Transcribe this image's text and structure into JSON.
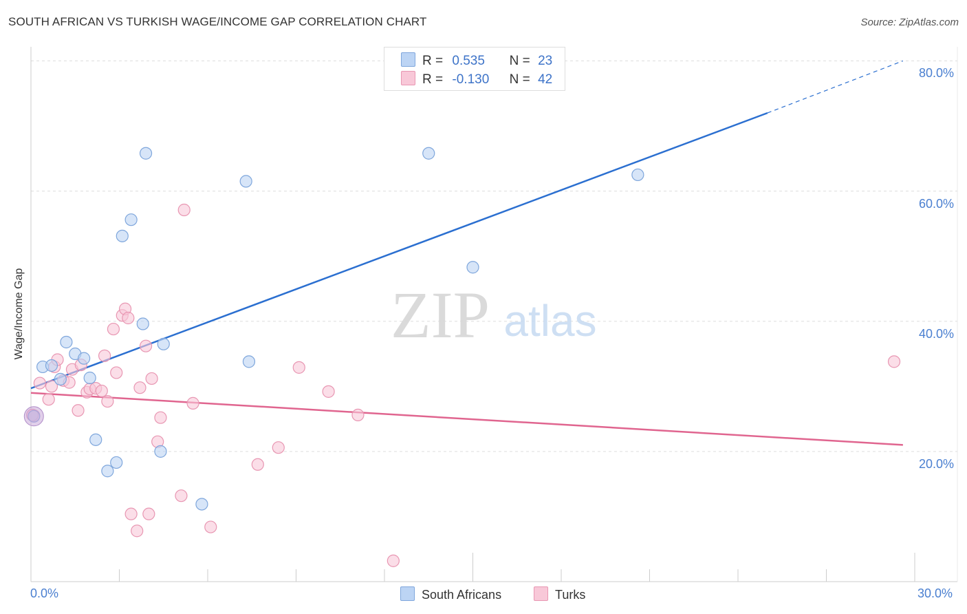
{
  "title": "SOUTH AFRICAN VS TURKISH WAGE/INCOME GAP CORRELATION CHART",
  "source": "Source: ZipAtlas.com",
  "watermark": {
    "zip": "ZIP",
    "atlas": "atlas"
  },
  "colors": {
    "blue_fill": "#bcd4f4",
    "blue_stroke": "#7ea6dc",
    "blue_line": "#2b6fd0",
    "pink_fill": "#f8c8d8",
    "pink_stroke": "#e896b2",
    "pink_line": "#e0658f",
    "axis_label": "#4a7fd0",
    "grid": "#dddddd"
  },
  "legend": {
    "rows": [
      {
        "r_label": "R =",
        "r_value": "0.535",
        "n_label": "N =",
        "n_value": "23",
        "series": "blue"
      },
      {
        "r_label": "R =",
        "r_value": "-0.130",
        "n_label": "N =",
        "n_value": "42",
        "series": "pink"
      }
    ]
  },
  "bottom_legend": [
    {
      "label": "South Africans",
      "series": "blue"
    },
    {
      "label": "Turks",
      "series": "pink"
    }
  ],
  "chart_data": {
    "type": "scatter",
    "title": "SOUTH AFRICAN VS TURKISH WAGE/INCOME GAP CORRELATION CHART",
    "xlabel": "",
    "ylabel": "Wage/Income Gap",
    "xlim": [
      0,
      30
    ],
    "ylim": [
      0,
      81
    ],
    "x_tick_labels": [
      "0.0%",
      "30.0%"
    ],
    "y_ticks": [
      20,
      40,
      60,
      80
    ],
    "y_tick_labels": [
      "20.0%",
      "40.0%",
      "60.0%",
      "80.0%"
    ],
    "grid": true,
    "series": [
      {
        "name": "South Africans",
        "color": "#7ea6dc",
        "r": 0.535,
        "n": 23,
        "trend": {
          "x0": 0,
          "y0": 29.7,
          "x1": 25.0,
          "y1": 72.0,
          "dashed_to_x": 29.6,
          "dashed_to_y": 80.0
        },
        "points": [
          [
            0.1,
            25.4
          ],
          [
            0.4,
            33.0
          ],
          [
            0.7,
            33.2
          ],
          [
            1.0,
            31.1
          ],
          [
            1.2,
            36.8
          ],
          [
            1.5,
            35.0
          ],
          [
            1.8,
            34.3
          ],
          [
            2.0,
            31.3
          ],
          [
            2.2,
            21.8
          ],
          [
            2.6,
            17.0
          ],
          [
            2.9,
            18.3
          ],
          [
            3.1,
            53.1
          ],
          [
            3.4,
            55.6
          ],
          [
            3.8,
            39.6
          ],
          [
            3.9,
            65.8
          ],
          [
            4.4,
            20.0
          ],
          [
            4.5,
            36.5
          ],
          [
            5.8,
            11.9
          ],
          [
            7.3,
            61.5
          ],
          [
            7.4,
            33.8
          ],
          [
            13.5,
            65.8
          ],
          [
            15.0,
            48.3
          ],
          [
            20.6,
            62.5
          ]
        ]
      },
      {
        "name": "Turks",
        "color": "#e896b2",
        "r": -0.13,
        "n": 42,
        "trend": {
          "x0": 0,
          "y0": 29.0,
          "x1": 29.6,
          "y1": 21.0
        },
        "points": [
          [
            0.1,
            25.5
          ],
          [
            0.3,
            30.5
          ],
          [
            0.6,
            28.0
          ],
          [
            0.7,
            30.0
          ],
          [
            0.8,
            33.0
          ],
          [
            0.9,
            34.1
          ],
          [
            1.1,
            30.9
          ],
          [
            1.3,
            30.6
          ],
          [
            1.4,
            32.6
          ],
          [
            1.6,
            26.3
          ],
          [
            1.7,
            33.3
          ],
          [
            1.9,
            29.1
          ],
          [
            2.0,
            29.6
          ],
          [
            2.2,
            29.7
          ],
          [
            2.4,
            29.3
          ],
          [
            2.5,
            34.7
          ],
          [
            2.6,
            27.7
          ],
          [
            2.8,
            38.8
          ],
          [
            2.9,
            32.1
          ],
          [
            3.1,
            40.9
          ],
          [
            3.2,
            41.9
          ],
          [
            3.3,
            40.5
          ],
          [
            3.4,
            10.4
          ],
          [
            3.6,
            7.8
          ],
          [
            3.7,
            29.8
          ],
          [
            3.9,
            36.2
          ],
          [
            4.0,
            10.4
          ],
          [
            4.1,
            31.2
          ],
          [
            4.3,
            21.5
          ],
          [
            4.4,
            25.2
          ],
          [
            5.1,
            13.2
          ],
          [
            5.2,
            57.1
          ],
          [
            5.5,
            27.4
          ],
          [
            6.1,
            8.4
          ],
          [
            7.7,
            18.0
          ],
          [
            8.4,
            20.6
          ],
          [
            9.1,
            32.9
          ],
          [
            10.1,
            29.2
          ],
          [
            11.1,
            25.6
          ],
          [
            12.3,
            3.2
          ],
          [
            29.3,
            33.8
          ],
          [
            0.05,
            25.6
          ]
        ]
      }
    ]
  }
}
